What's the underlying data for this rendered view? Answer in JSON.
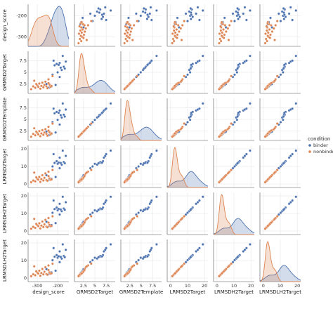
{
  "chart_data": {
    "type": "pairplot",
    "legend_title": "condition",
    "legend_position": "right",
    "grid": true,
    "variables": [
      {
        "name": "design_score",
        "lim": [
          -345,
          -145
        ],
        "ticks": [
          -300,
          -200
        ]
      },
      {
        "name": "GRMSD2Target",
        "lim": [
          0.5,
          9.5
        ],
        "ticks": [
          2.5,
          5.0,
          7.5
        ]
      },
      {
        "name": "GRMSD2Template",
        "lim": [
          0.5,
          9.5
        ],
        "ticks": [
          2.5,
          5.0,
          7.5
        ]
      },
      {
        "name": "LRMSD2Target",
        "lim": [
          -2,
          22
        ],
        "ticks": [
          0,
          10,
          20
        ]
      },
      {
        "name": "LRMSDH2Target",
        "lim": [
          -2,
          22
        ],
        "ticks": [
          0,
          10,
          20
        ]
      },
      {
        "name": "LRMSDLH2Target",
        "lim": [
          -2,
          22
        ],
        "ticks": [
          0,
          10,
          20
        ]
      }
    ],
    "series": [
      {
        "name": "binder",
        "color": "#4c72b0",
        "values": [
          [
            -215,
            6.5,
            6.3,
            12,
            12.5,
            12.2
          ],
          [
            -205,
            6.8,
            6.6,
            13,
            13.4,
            13.1
          ],
          [
            -190,
            7.0,
            6.9,
            15,
            15.5,
            15.2
          ],
          [
            -180,
            5.5,
            5.4,
            11,
            11.3,
            11.1
          ],
          [
            -170,
            6.2,
            6.0,
            12.5,
            12.8,
            12.6
          ],
          [
            -160,
            7.3,
            7.1,
            16,
            16.4,
            16.1
          ],
          [
            -225,
            4.5,
            4.4,
            10,
            10.4,
            10.2
          ],
          [
            -200,
            5.0,
            4.9,
            11.5,
            11.8,
            11.6
          ],
          [
            -185,
            6.0,
            5.9,
            12,
            12.3,
            12.1
          ],
          [
            -175,
            8.5,
            8.4,
            19,
            19.5,
            19.2
          ],
          [
            -220,
            7.5,
            7.3,
            17,
            17.4,
            17.1
          ],
          [
            -195,
            6.6,
            6.4,
            12.2,
            12.6,
            12.4
          ],
          [
            -165,
            5.8,
            5.6,
            11.8,
            12.1,
            11.9
          ],
          [
            -210,
            2.3,
            2.2,
            4,
            4.5,
            4.2
          ],
          [
            -230,
            2.0,
            1.9,
            3,
            3.4,
            3.2
          ],
          [
            -240,
            1.8,
            1.7,
            2.5,
            2.9,
            2.6
          ],
          [
            -255,
            2.5,
            2.4,
            5,
            5.3,
            5.1
          ],
          [
            -190,
            4.0,
            3.9,
            9,
            9.4,
            9.1
          ]
        ]
      },
      {
        "name": "nonbinder",
        "color": "#dd8452",
        "values": [
          [
            -320,
            2.0,
            1.9,
            2,
            2.4,
            2.2
          ],
          [
            -310,
            1.7,
            1.6,
            1.5,
            1.8,
            1.6
          ],
          [
            -300,
            2.2,
            2.1,
            3,
            3.3,
            3.1
          ],
          [
            -295,
            1.9,
            1.8,
            2.5,
            2.8,
            2.6
          ],
          [
            -290,
            2.6,
            2.5,
            4,
            4.4,
            4.2
          ],
          [
            -285,
            1.5,
            1.4,
            1.2,
            1.5,
            1.3
          ],
          [
            -280,
            2.1,
            2.0,
            2.8,
            3.1,
            2.9
          ],
          [
            -275,
            2.8,
            2.7,
            5,
            5.4,
            5.2
          ],
          [
            -270,
            1.8,
            1.7,
            2,
            2.3,
            2.1
          ],
          [
            -265,
            2.3,
            2.2,
            3.5,
            3.8,
            3.6
          ],
          [
            -260,
            3.0,
            2.9,
            6,
            6.4,
            6.2
          ],
          [
            -255,
            2.0,
            1.9,
            2.2,
            2.5,
            2.3
          ],
          [
            -250,
            1.6,
            1.5,
            1.8,
            2.1,
            1.9
          ],
          [
            -245,
            3.5,
            3.4,
            7,
            7.4,
            7.2
          ],
          [
            -240,
            2.4,
            2.3,
            3.2,
            3.5,
            3.3
          ],
          [
            -235,
            1.9,
            1.8,
            2.4,
            2.7,
            2.5
          ],
          [
            -305,
            2.5,
            2.4,
            3.8,
            4.1,
            3.9
          ],
          [
            -315,
            3.2,
            3.1,
            6.5,
            6.9,
            6.7
          ],
          [
            -230,
            2.1,
            2.0,
            2.6,
            2.9,
            2.7
          ],
          [
            -225,
            4.2,
            4.1,
            8,
            8.4,
            8.2
          ],
          [
            -330,
            1.4,
            1.3,
            1.0,
            1.3,
            1.1
          ],
          [
            -245,
            2.7,
            2.6,
            4.5,
            4.8,
            4.6
          ]
        ]
      }
    ]
  }
}
